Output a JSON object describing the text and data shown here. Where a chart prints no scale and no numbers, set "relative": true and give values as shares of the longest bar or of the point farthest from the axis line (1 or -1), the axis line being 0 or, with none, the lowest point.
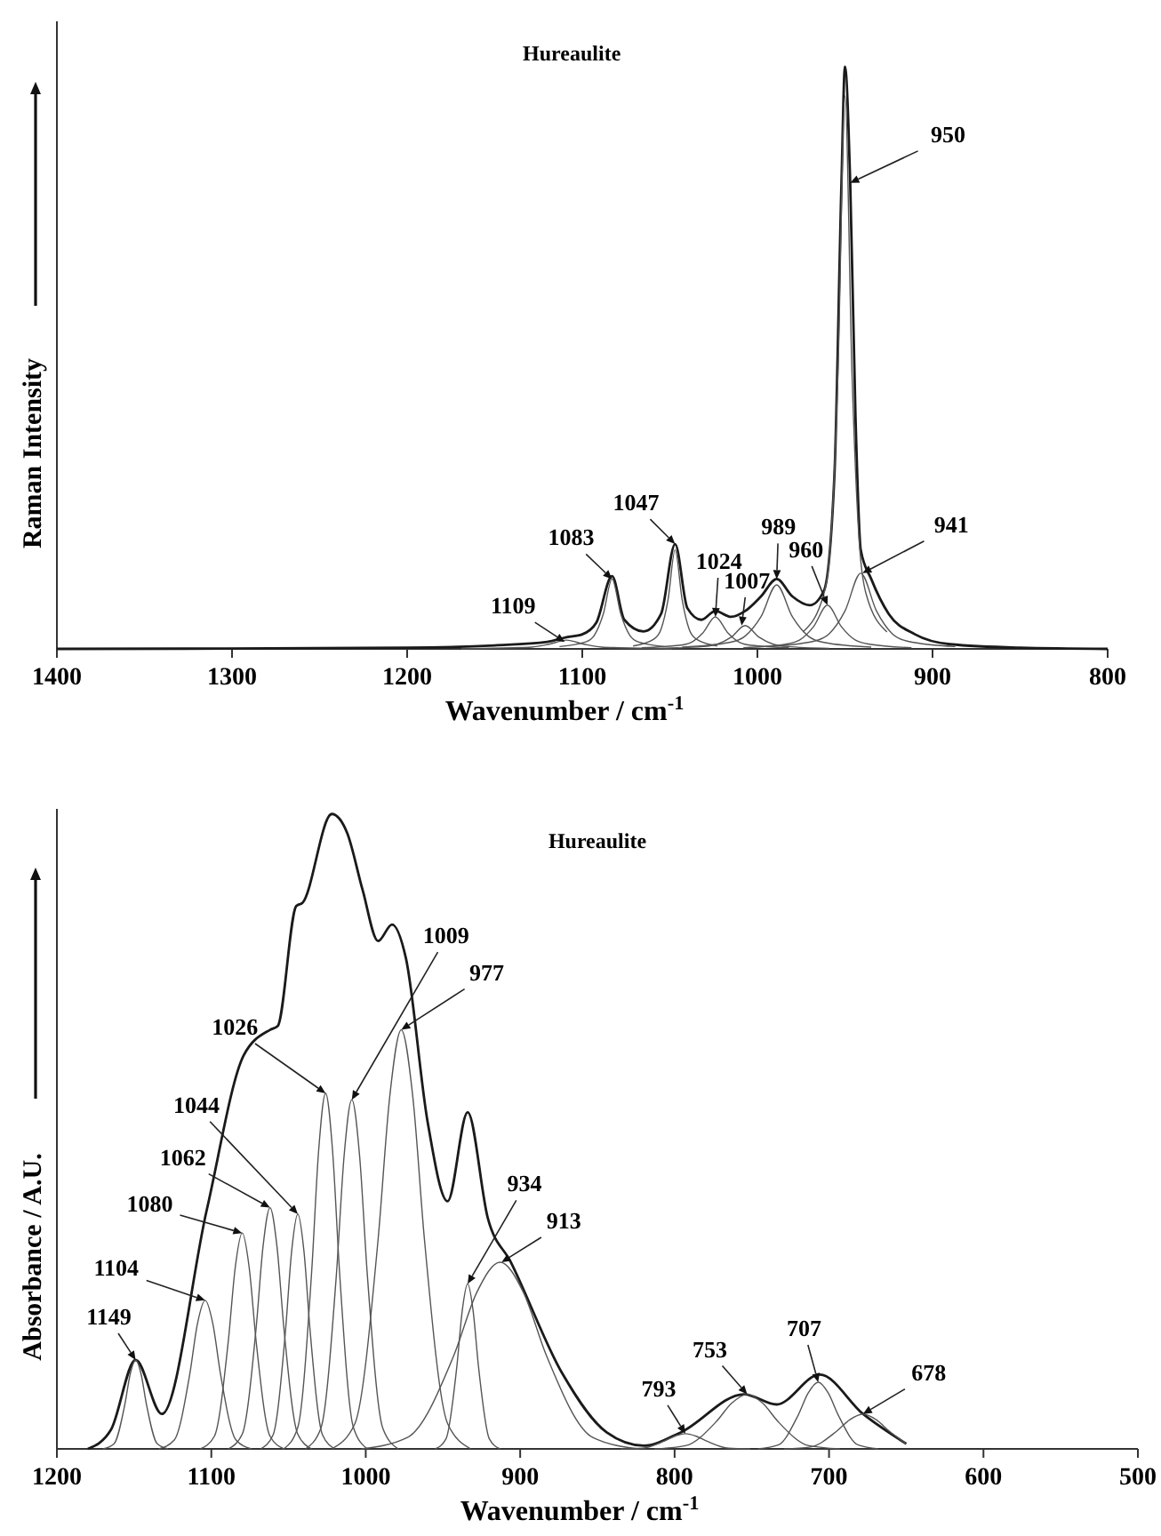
{
  "chart_data": [
    {
      "type": "line",
      "relative": true,
      "title": "Hureaulite",
      "xlabel": "Wavenumber / cm$^{-1}$",
      "ylabel": "Raman  Intensity",
      "xlim": [
        1400,
        800
      ],
      "xticks": [
        1400,
        1300,
        1200,
        1100,
        1000,
        900,
        800
      ],
      "series": [
        {
          "color": "#1a1a1a",
          "x": [
            1400,
            1200,
            1150,
            1120,
            1109,
            1100,
            1092,
            1083,
            1076,
            1065,
            1055,
            1047,
            1040,
            1032,
            1024,
            1015,
            1007,
            998,
            989,
            980,
            970,
            962,
            956,
            952,
            950,
            947,
            944,
            941,
            935,
            925,
            910,
            890,
            850,
            800
          ],
          "values": [
            0,
            0.002,
            0.006,
            0.012,
            0.02,
            0.025,
            0.045,
            0.125,
            0.05,
            0.03,
            0.06,
            0.18,
            0.07,
            0.05,
            0.065,
            0.055,
            0.065,
            0.09,
            0.12,
            0.09,
            0.075,
            0.1,
            0.3,
            0.8,
            1.0,
            0.8,
            0.4,
            0.17,
            0.12,
            0.06,
            0.025,
            0.008,
            0.002,
            0
          ]
        },
        {
          "color": "#555555",
          "x": [
            1169,
            1139,
            1129,
            1119,
            1109,
            1099,
            1089,
            1079,
            1049
          ],
          "values": [
            0,
            0.002,
            0.003,
            0.008,
            0.015,
            0.008,
            0.003,
            0.002,
            0
          ]
        },
        {
          "color": "#555555",
          "x": [
            1113,
            1098,
            1093,
            1088,
            1083,
            1078,
            1073,
            1068,
            1053
          ],
          "values": [
            0.004,
            0.012,
            0.024,
            0.06,
            0.12,
            0.06,
            0.024,
            0.012,
            0.004
          ]
        },
        {
          "color": "#555555",
          "x": [
            1071,
            1059,
            1055,
            1051,
            1047,
            1043,
            1039,
            1035,
            1023
          ],
          "values": [
            0.005,
            0.017,
            0.034,
            0.085,
            0.17,
            0.085,
            0.034,
            0.017,
            0.005
          ]
        },
        {
          "color": "#555555",
          "x": [
            1066,
            1045,
            1038,
            1031,
            1024,
            1017,
            1010,
            1003,
            982
          ],
          "values": [
            0.002,
            0.006,
            0.011,
            0.028,
            0.055,
            0.028,
            0.011,
            0.006,
            0.002
          ]
        },
        {
          "color": "#555555",
          "x": [
            1055,
            1031,
            1023,
            1015,
            1007,
            999,
            991,
            983,
            959
          ],
          "values": [
            0.001,
            0.004,
            0.008,
            0.02,
            0.04,
            0.02,
            0.008,
            0.004,
            0.001
          ]
        },
        {
          "color": "#555555",
          "x": [
            1043,
            1016,
            1007,
            998,
            989,
            980,
            971,
            962,
            935
          ],
          "values": [
            0.003,
            0.011,
            0.022,
            0.055,
            0.11,
            0.055,
            0.022,
            0.011,
            0.003
          ]
        },
        {
          "color": "#555555",
          "x": [
            1008,
            984,
            976,
            968,
            960,
            952,
            944,
            936,
            912
          ],
          "values": [
            0.002,
            0.008,
            0.015,
            0.038,
            0.075,
            0.038,
            0.015,
            0.008,
            0.002
          ]
        },
        {
          "color": "#555555",
          "x": [
            974,
            962,
            958,
            954,
            950,
            946,
            942,
            938,
            926
          ],
          "values": [
            0.029,
            0.095,
            0.19,
            0.475,
            0.95,
            0.475,
            0.19,
            0.095,
            0.029
          ]
        },
        {
          "color": "#555555",
          "x": [
            995,
            968,
            959,
            950,
            941,
            932,
            923,
            914,
            887
          ],
          "values": [
            0.004,
            0.013,
            0.026,
            0.065,
            0.13,
            0.065,
            0.026,
            0.013,
            0.004
          ]
        }
      ],
      "annotations": [
        {
          "text": "1109",
          "x": 1110,
          "y": 0.012
        },
        {
          "text": "1083",
          "x": 1083,
          "y": 0.12
        },
        {
          "text": "1047",
          "x": 1047,
          "y": 0.18
        },
        {
          "text": "1024",
          "x": 1024,
          "y": 0.055
        },
        {
          "text": "1007",
          "x": 1009,
          "y": 0.04
        },
        {
          "text": "989",
          "x": 989,
          "y": 0.12
        },
        {
          "text": "960",
          "x": 960,
          "y": 0.075
        },
        {
          "text": "950",
          "x": 947,
          "y": 0.8
        },
        {
          "text": "941",
          "x": 940,
          "y": 0.13
        }
      ]
    },
    {
      "type": "line",
      "relative": true,
      "title": "Hureaulite",
      "xlabel": "Wavenumber / cm$^{-1}$",
      "ylabel": "Absorbance / A.U.",
      "xlim": [
        1200,
        500
      ],
      "xticks": [
        1200,
        1100,
        1000,
        900,
        800,
        700,
        600,
        500
      ],
      "series": [
        {
          "color": "#1a1a1a",
          "x": [
            1180,
            1165,
            1149,
            1132,
            1103,
            1079,
            1062,
            1057,
            1045,
            1041,
            1022,
            1012,
            1002,
            992,
            983,
            974,
            960,
            947,
            934,
            921,
            906,
            873,
            844,
            820,
            796,
            755,
            734,
            706,
            678,
            650
          ],
          "values": [
            0,
            0.03,
            0.14,
            0.055,
            0.376,
            0.62,
            0.66,
            0.666,
            0.855,
            0.86,
            1.0,
            0.97,
            0.88,
            0.8,
            0.826,
            0.773,
            0.516,
            0.39,
            0.53,
            0.364,
            0.294,
            0.12,
            0.026,
            0.005,
            0.026,
            0.086,
            0.07,
            0.117,
            0.055,
            0.008
          ]
        },
        {
          "color": "#555555",
          "x": [
            1170,
            1163,
            1156,
            1152.5,
            1149,
            1145.5,
            1142,
            1135,
            1128
          ],
          "values": [
            0,
            0.008,
            0.07,
            0.118,
            0.14,
            0.118,
            0.07,
            0.008,
            0
          ]
        },
        {
          "color": "#555555",
          "x": [
            1134,
            1124,
            1114,
            1109,
            1104,
            1099,
            1094,
            1084,
            1074
          ],
          "values": [
            0,
            0.014,
            0.117,
            0.197,
            0.234,
            0.197,
            0.117,
            0.014,
            0
          ]
        },
        {
          "color": "#555555",
          "x": [
            1107,
            1098,
            1089,
            1084.5,
            1080,
            1075.5,
            1071,
            1062,
            1053
          ],
          "values": [
            0,
            0.02,
            0.17,
            0.286,
            0.34,
            0.286,
            0.17,
            0.02,
            0
          ]
        },
        {
          "color": "#555555",
          "x": [
            1089,
            1080,
            1071,
            1066.5,
            1062,
            1057.5,
            1053,
            1044,
            1035
          ],
          "values": [
            0,
            0.023,
            0.19,
            0.319,
            0.38,
            0.319,
            0.19,
            0.023,
            0
          ]
        },
        {
          "color": "#555555",
          "x": [
            1068,
            1060,
            1052,
            1048,
            1044,
            1040,
            1036,
            1028,
            1020
          ],
          "values": [
            0,
            0.022,
            0.185,
            0.311,
            0.37,
            0.311,
            0.185,
            0.022,
            0
          ]
        },
        {
          "color": "#555555",
          "x": [
            1053,
            1044,
            1035,
            1030.5,
            1026,
            1021.5,
            1017,
            1008,
            999
          ],
          "values": [
            0,
            0.034,
            0.28,
            0.47,
            0.56,
            0.47,
            0.28,
            0.034,
            0
          ]
        },
        {
          "color": "#555555",
          "x": [
            1039,
            1029,
            1019,
            1014,
            1009,
            1004,
            999,
            989,
            979
          ],
          "values": [
            0,
            0.033,
            0.275,
            0.462,
            0.55,
            0.462,
            0.275,
            0.033,
            0
          ]
        },
        {
          "color": "#555555",
          "x": [
            1022,
            1007,
            992,
            984.5,
            977,
            969.5,
            962,
            947,
            932
          ],
          "values": [
            0,
            0.04,
            0.33,
            0.554,
            0.66,
            0.554,
            0.33,
            0.04,
            0
          ]
        },
        {
          "color": "#555555",
          "x": [
            955,
            948,
            941,
            937.5,
            934,
            930.5,
            927,
            920,
            913
          ],
          "values": [
            0,
            0.016,
            0.13,
            0.218,
            0.26,
            0.218,
            0.13,
            0.016,
            0
          ]
        },
        {
          "color": "#555555",
          "x": [
            1003,
            973,
            943,
            928,
            913,
            898,
            883,
            853,
            823
          ],
          "values": [
            0,
            0.018,
            0.147,
            0.247,
            0.294,
            0.247,
            0.147,
            0.018,
            0
          ]
        },
        {
          "color": "#555555",
          "x": [
            835,
            821,
            807,
            800,
            793,
            786,
            779,
            765,
            751
          ],
          "values": [
            0,
            0.001,
            0.012,
            0.02,
            0.024,
            0.02,
            0.012,
            0.001,
            0
          ]
        },
        {
          "color": "#555555",
          "x": [
            813,
            793,
            773,
            763,
            753,
            743,
            733,
            713,
            693
          ],
          "values": [
            0,
            0.005,
            0.043,
            0.072,
            0.086,
            0.072,
            0.043,
            0.005,
            0
          ]
        },
        {
          "color": "#555555",
          "x": [
            746,
            733,
            720,
            713.5,
            707,
            700.5,
            694,
            681,
            668
          ],
          "values": [
            0,
            0.006,
            0.053,
            0.088,
            0.105,
            0.088,
            0.053,
            0.006,
            0
          ]
        },
        {
          "color": "#555555",
          "x": [
            729,
            712,
            695,
            686.5,
            678,
            669.5,
            661,
            650
          ],
          "values": [
            0,
            0.003,
            0.028,
            0.046,
            0.055,
            0.046,
            0.028,
            0.008
          ]
        }
      ],
      "annotations": [
        {
          "text": "1149",
          "x": 1149,
          "y": 0.14
        },
        {
          "text": "1104",
          "x": 1104,
          "y": 0.234
        },
        {
          "text": "1080",
          "x": 1080,
          "y": 0.34
        },
        {
          "text": "1062",
          "x": 1062,
          "y": 0.38
        },
        {
          "text": "1044",
          "x": 1044,
          "y": 0.37
        },
        {
          "text": "1026",
          "x": 1026,
          "y": 0.56
        },
        {
          "text": "1009",
          "x": 1009,
          "y": 0.55
        },
        {
          "text": "977",
          "x": 977,
          "y": 0.66
        },
        {
          "text": "934",
          "x": 934,
          "y": 0.26
        },
        {
          "text": "913",
          "x": 912,
          "y": 0.294
        },
        {
          "text": "793",
          "x": 793,
          "y": 0.024
        },
        {
          "text": "753",
          "x": 753,
          "y": 0.086
        },
        {
          "text": "707",
          "x": 707,
          "y": 0.105
        },
        {
          "text": "678",
          "x": 678,
          "y": 0.055
        }
      ]
    }
  ]
}
